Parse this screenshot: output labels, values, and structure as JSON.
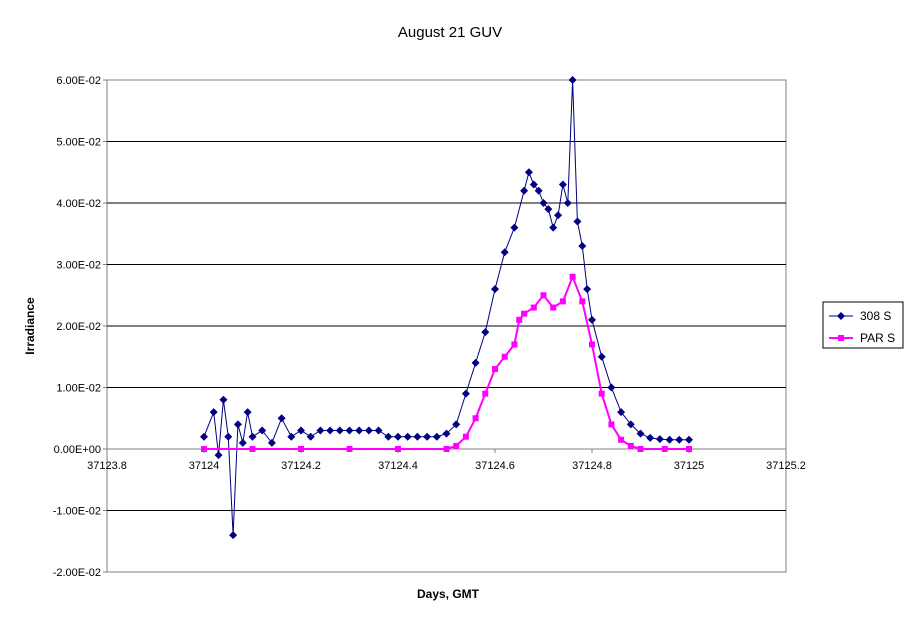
{
  "chart_data": {
    "type": "scatter",
    "title": "August 21 GUV",
    "xlabel": "Days, GMT",
    "ylabel": "Irradiance",
    "xlim": [
      37123.8,
      37125.2
    ],
    "ylim": [
      -0.02,
      0.06
    ],
    "x_ticks": [
      "37123.8",
      "37124",
      "37124.2",
      "37124.4",
      "37124.6",
      "37124.8",
      "37125",
      "37125.2"
    ],
    "y_ticks": [
      "6.00E-02",
      "5.00E-02",
      "4.00E-02",
      "3.00E-02",
      "2.00E-02",
      "1.00E-02",
      "0.00E+00",
      "-1.00E-02",
      "-2.00E-02"
    ],
    "grid": "horizontal",
    "legend_position": "right",
    "series": [
      {
        "name": "308 S",
        "color": "#000080",
        "marker": "diamond",
        "x": [
          37124.0,
          37124.02,
          37124.03,
          37124.04,
          37124.05,
          37124.06,
          37124.07,
          37124.08,
          37124.09,
          37124.1,
          37124.12,
          37124.14,
          37124.16,
          37124.18,
          37124.2,
          37124.22,
          37124.24,
          37124.26,
          37124.28,
          37124.3,
          37124.32,
          37124.34,
          37124.36,
          37124.38,
          37124.4,
          37124.42,
          37124.44,
          37124.46,
          37124.48,
          37124.5,
          37124.52,
          37124.54,
          37124.56,
          37124.58,
          37124.6,
          37124.62,
          37124.64,
          37124.66,
          37124.67,
          37124.68,
          37124.69,
          37124.7,
          37124.71,
          37124.72,
          37124.73,
          37124.74,
          37124.75,
          37124.76,
          37124.77,
          37124.78,
          37124.79,
          37124.8,
          37124.82,
          37124.84,
          37124.86,
          37124.88,
          37124.9,
          37124.92,
          37124.94,
          37124.96,
          37124.98,
          37125.0
        ],
        "y": [
          0.002,
          0.006,
          -0.001,
          0.008,
          0.002,
          -0.014,
          0.004,
          0.001,
          0.006,
          0.002,
          0.003,
          0.001,
          0.005,
          0.002,
          0.003,
          0.002,
          0.003,
          0.003,
          0.003,
          0.003,
          0.003,
          0.003,
          0.003,
          0.002,
          0.002,
          0.002,
          0.002,
          0.002,
          0.002,
          0.0025,
          0.004,
          0.009,
          0.014,
          0.019,
          0.026,
          0.032,
          0.036,
          0.042,
          0.045,
          0.043,
          0.042,
          0.04,
          0.039,
          0.036,
          0.038,
          0.043,
          0.04,
          0.06,
          0.037,
          0.033,
          0.026,
          0.021,
          0.015,
          0.01,
          0.006,
          0.004,
          0.0025,
          0.0018,
          0.0016,
          0.0015,
          0.0015,
          0.0015
        ]
      },
      {
        "name": "PAR S",
        "color": "#ff00ff",
        "marker": "square",
        "x": [
          37124.0,
          37124.1,
          37124.2,
          37124.3,
          37124.4,
          37124.5,
          37124.52,
          37124.54,
          37124.56,
          37124.58,
          37124.6,
          37124.62,
          37124.64,
          37124.65,
          37124.66,
          37124.68,
          37124.7,
          37124.72,
          37124.74,
          37124.76,
          37124.78,
          37124.8,
          37124.82,
          37124.84,
          37124.86,
          37124.88,
          37124.9,
          37124.95,
          37125.0
        ],
        "y": [
          0.0,
          0.0,
          0.0,
          0.0,
          0.0,
          0.0,
          0.0005,
          0.002,
          0.005,
          0.009,
          0.013,
          0.015,
          0.017,
          0.021,
          0.022,
          0.023,
          0.025,
          0.023,
          0.024,
          0.028,
          0.024,
          0.017,
          0.009,
          0.004,
          0.0015,
          0.0005,
          0.0,
          0.0,
          0.0
        ]
      }
    ]
  }
}
